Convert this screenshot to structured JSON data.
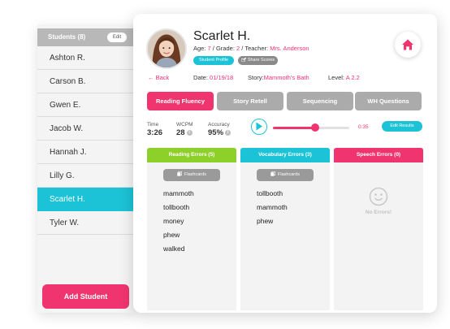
{
  "sidebar": {
    "title": "Students (8)",
    "edit_label": "Edit",
    "students": [
      "Ashton R.",
      "Carson B.",
      "Gwen E.",
      "Jacob W.",
      "Hannah J.",
      "Lilly G.",
      "Scarlet H.",
      "Tyler W."
    ],
    "active_student": "Scarlet H.",
    "add_label": "Add Student"
  },
  "student": {
    "name": "Scarlet H.",
    "age_label": "Age:",
    "age": "7",
    "grade_label": "Grade:",
    "grade": "2",
    "teacher_label": "Teacher:",
    "teacher": "Mrs. Anderson",
    "profile_btn": "Student Profile",
    "share_btn": "Share Scores"
  },
  "nav": {
    "back": "Back",
    "date_label": "Date:",
    "date": "01/19/18",
    "story_label": "Story:",
    "story": "Mammoth's Bath",
    "level_label": "Level:",
    "level": "A 2.2"
  },
  "tabs": [
    "Reading Fluency",
    "Story Retell",
    "Sequencing",
    "WH Questions"
  ],
  "active_tab": "Reading Fluency",
  "stats": {
    "time_label": "Time",
    "time_value": "3:26",
    "wcpm_label": "WCPM",
    "wcpm_value": "28",
    "accuracy_label": "Accuracy",
    "accuracy_value": "95%",
    "info_glyph": "i"
  },
  "player": {
    "progress": 0.55,
    "time": "0:35",
    "edit_label": "Edit Results"
  },
  "columns": {
    "reading": {
      "title": "Reading Errors (5)",
      "flash_label": "Flashcards",
      "words": [
        "mammoth",
        "tollbooth",
        "money",
        "phew",
        "walked"
      ]
    },
    "vocab": {
      "title": "Vocabulary Errors (3)",
      "flash_label": "Flashcards",
      "words": [
        "tollbooth",
        "mammoth",
        "phew"
      ]
    },
    "speech": {
      "title": "Speech Errors (0)",
      "empty_label": "No Errors!"
    }
  },
  "colors": {
    "accent_pink": "#f0346f",
    "accent_cyan": "#1cc3d6",
    "accent_green": "#8ed02a"
  },
  "icons": [
    "home-icon",
    "play-icon",
    "flashcards-icon",
    "share-icon",
    "smiley-icon"
  ]
}
